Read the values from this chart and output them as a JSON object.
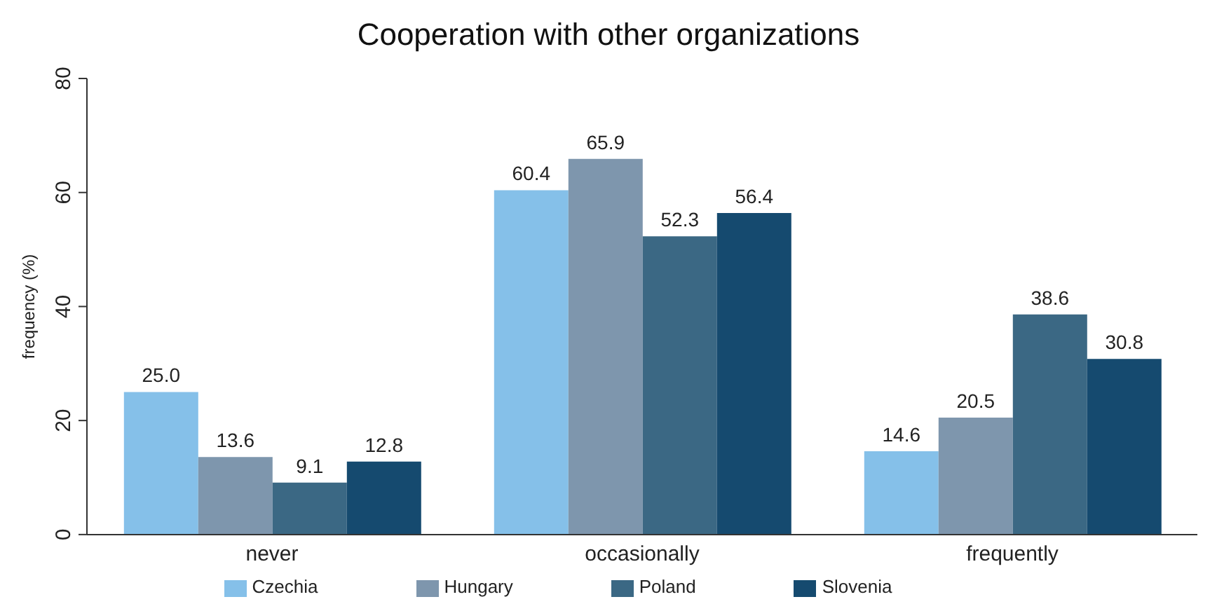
{
  "chart_data": {
    "type": "bar",
    "title": "Cooperation with other organizations",
    "ylabel": "frequency (%)",
    "categories": [
      "never",
      "occasionally",
      "frequently"
    ],
    "series": [
      {
        "name": "Czechia",
        "color": "#85c0e9",
        "values": [
          25.0,
          60.4,
          14.6
        ],
        "value_labels": [
          "25.0",
          "60.4",
          "14.6"
        ]
      },
      {
        "name": "Hungary",
        "color": "#7e96ad",
        "values": [
          13.6,
          65.9,
          20.5
        ],
        "value_labels": [
          "13.6",
          "65.9",
          "20.5"
        ]
      },
      {
        "name": "Poland",
        "color": "#3b6884",
        "values": [
          9.1,
          52.3,
          38.6
        ],
        "value_labels": [
          "9.1",
          "52.3",
          "38.6"
        ]
      },
      {
        "name": "Slovenia",
        "color": "#154a6f",
        "values": [
          12.8,
          56.4,
          30.8
        ],
        "value_labels": [
          "12.8",
          "56.4",
          "30.8"
        ]
      }
    ],
    "ylim": [
      0,
      80
    ],
    "yticks": [
      0,
      20,
      40,
      60,
      80
    ],
    "grid": false,
    "legend": "bottom"
  }
}
